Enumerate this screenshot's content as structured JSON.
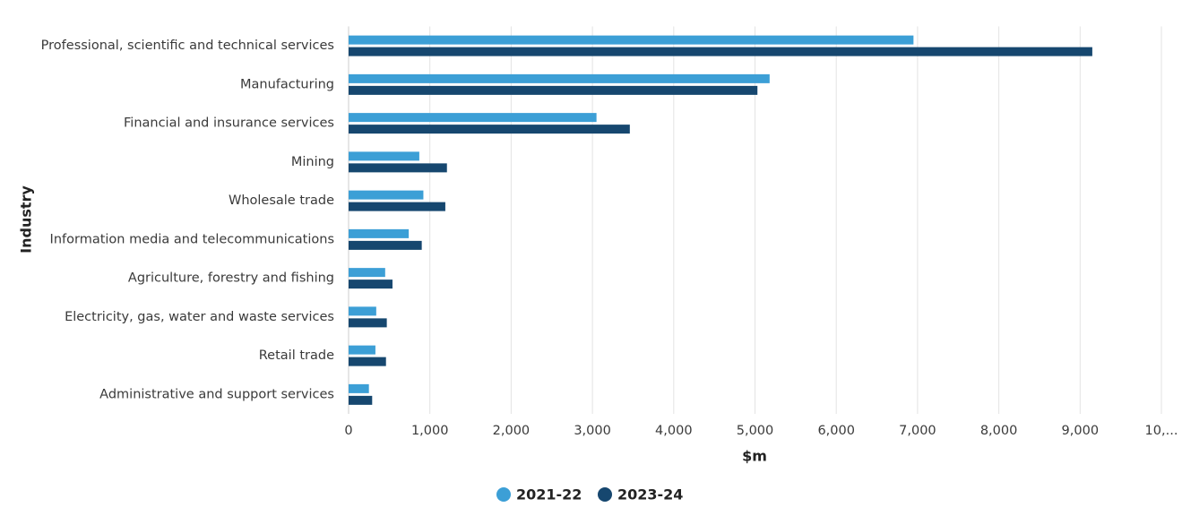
{
  "chart_data": {
    "type": "bar",
    "orientation": "horizontal",
    "x_label": "$m",
    "y_label": "Industry",
    "categories": [
      "Professional, scientific and technical services",
      "Manufacturing",
      "Financial and insurance services",
      "Mining",
      "Wholesale trade",
      "Information media and telecommunications",
      "Agriculture, forestry and fishing",
      "Electricity, gas, water and waste services",
      "Retail trade",
      "Administrative and support services"
    ],
    "series": [
      {
        "name": "2021-22",
        "color": "#3c9fd6",
        "values": [
          6950,
          5180,
          3050,
          870,
          920,
          740,
          450,
          340,
          330,
          250
        ]
      },
      {
        "name": "2023-24",
        "color": "#16476f",
        "values": [
          9150,
          5030,
          3460,
          1210,
          1190,
          900,
          540,
          470,
          460,
          290
        ]
      }
    ],
    "xlim": [
      0,
      10000
    ],
    "xticks": [
      0,
      {
        "value": 1000,
        "label": "1,000"
      },
      {
        "value": 2000,
        "label": "2,000"
      },
      {
        "value": 3000,
        "label": "3,000"
      },
      {
        "value": 4000,
        "label": "4,000"
      },
      {
        "value": 5000,
        "label": "5,000"
      },
      {
        "value": 6000,
        "label": "6,000"
      },
      {
        "value": 7000,
        "label": "7,000"
      },
      {
        "value": 8000,
        "label": "8,000"
      },
      {
        "value": 9000,
        "label": "9,000"
      },
      {
        "value": 10000,
        "label": "10,..."
      }
    ],
    "grid": true,
    "legend": "bottom"
  }
}
